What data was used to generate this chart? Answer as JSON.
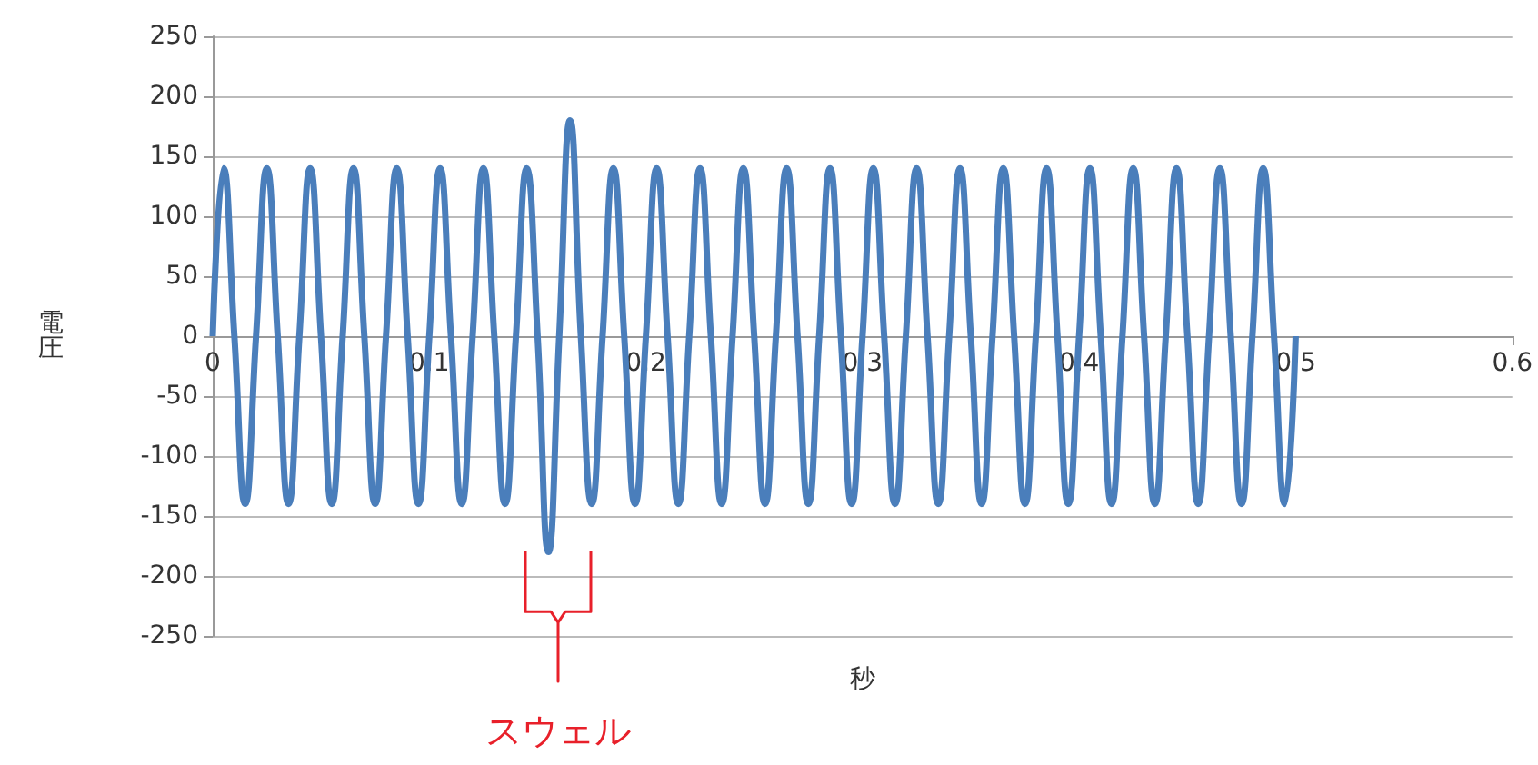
{
  "chart_data": {
    "type": "line",
    "xlabel": "秒",
    "ylabel": "電圧",
    "x": [
      0,
      0.005,
      0.01,
      0.015,
      0.02,
      0.025,
      0.03,
      0.035,
      0.04,
      0.045,
      0.05,
      0.055,
      0.06,
      0.065,
      0.07,
      0.075,
      0.08,
      0.085,
      0.09,
      0.095,
      0.1,
      0.105,
      0.11,
      0.115,
      0.12,
      0.125,
      0.13,
      0.135,
      0.14,
      0.145,
      0.15,
      0.155,
      0.16,
      0.165,
      0.17,
      0.175,
      0.18,
      0.185,
      0.19,
      0.195,
      0.2,
      0.205,
      0.21,
      0.215,
      0.22,
      0.225,
      0.23,
      0.235,
      0.24,
      0.245,
      0.25,
      0.255,
      0.26,
      0.265,
      0.27,
      0.275,
      0.28,
      0.285,
      0.29,
      0.295,
      0.3,
      0.305,
      0.31,
      0.315,
      0.32,
      0.325,
      0.33,
      0.335,
      0.34,
      0.345,
      0.35,
      0.355,
      0.36,
      0.365,
      0.37,
      0.375,
      0.38,
      0.385,
      0.39,
      0.395,
      0.4,
      0.405,
      0.41,
      0.415,
      0.42,
      0.425,
      0.43,
      0.435,
      0.44,
      0.445,
      0.45,
      0.455,
      0.46,
      0.465,
      0.47,
      0.475,
      0.48,
      0.485,
      0.49,
      0.495,
      0.5
    ],
    "series": [
      {
        "color": "#4a7ebb",
        "values": [
          0,
          140,
          0,
          -140,
          0,
          140,
          0,
          -140,
          0,
          140,
          0,
          -140,
          0,
          140,
          0,
          -140,
          0,
          140,
          0,
          -140,
          0,
          140,
          0,
          -140,
          0,
          140,
          0,
          -140,
          0,
          140,
          0,
          -180,
          0,
          180,
          0,
          -140,
          0,
          140,
          0,
          -140,
          0,
          140,
          0,
          -140,
          0,
          140,
          0,
          -140,
          0,
          140,
          0,
          -140,
          0,
          140,
          0,
          -140,
          0,
          140,
          0,
          -140,
          0,
          140,
          0,
          -140,
          0,
          140,
          0,
          -140,
          0,
          140,
          0,
          -140,
          0,
          140,
          0,
          -140,
          0,
          140,
          0,
          -140,
          0,
          140,
          0,
          -140,
          0,
          140,
          0,
          -140,
          0,
          140,
          0,
          -140,
          0,
          140,
          0,
          -140,
          0,
          140,
          0,
          -140,
          0
        ]
      }
    ],
    "xlim": [
      0,
      0.6
    ],
    "xticks": [
      0,
      0.1,
      0.2,
      0.3,
      0.4,
      0.5,
      0.6
    ],
    "ylim": [
      -250,
      250
    ],
    "yticks": [
      -250,
      -200,
      -150,
      -100,
      -50,
      0,
      50,
      100,
      150,
      200,
      250
    ],
    "grid": "y",
    "marker": "none",
    "annotations": [
      "スウェル"
    ]
  }
}
